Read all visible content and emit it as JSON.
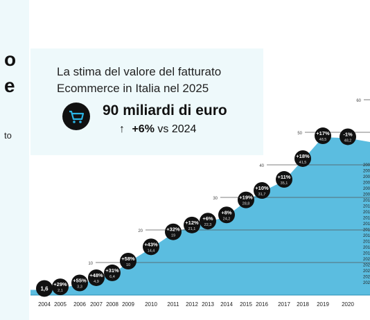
{
  "left_panel": {
    "line1": "o",
    "line2": "e",
    "note": "to"
  },
  "info_box": {
    "subtitle": "La stima del valore del fatturato Ecommerce in Italia nel 2025",
    "headline": "90 miliardi di euro",
    "growth_pct": "+6%",
    "growth_ref": "vs 2024",
    "icon": "shopping-cart-icon"
  },
  "colors": {
    "area": "#5bbde0",
    "bubble": "#111111",
    "panel": "#eef9fb",
    "grid": "#555555"
  },
  "chart_data": {
    "type": "area",
    "ylim": [
      0,
      60
    ],
    "yticks": [
      10,
      20,
      30,
      40,
      50,
      60
    ],
    "x_tick_labels": [
      "2004",
      "2005",
      "2006",
      "2007",
      "2008",
      "2009",
      "2010",
      "2011",
      "2012",
      "2013",
      "2014",
      "2015",
      "2016",
      "2017",
      "2018",
      "2019",
      "2020"
    ],
    "points": [
      {
        "year": "2004",
        "value": 1.6,
        "growth": "",
        "value_label": "1,6"
      },
      {
        "year": "2005",
        "value": 2.1,
        "growth": "+29%",
        "value_label": "2,1"
      },
      {
        "year": "2006",
        "value": 3.3,
        "growth": "+55%",
        "value_label": "3,3"
      },
      {
        "year": "2007",
        "value": 4.9,
        "growth": "+48%",
        "value_label": "4,9"
      },
      {
        "year": "2008",
        "value": 6.4,
        "growth": "+31%",
        "value_label": "6,4"
      },
      {
        "year": "2009",
        "value": 10,
        "growth": "+58%",
        "value_label": "10"
      },
      {
        "year": "2010",
        "value": 14.4,
        "growth": "+43%",
        "value_label": "14,4"
      },
      {
        "year": "2011",
        "value": 19,
        "growth": "+32%",
        "value_label": "19"
      },
      {
        "year": "2012",
        "value": 21.1,
        "growth": "+12%",
        "value_label": "21,1"
      },
      {
        "year": "2013",
        "value": 22.3,
        "growth": "+6%",
        "value_label": "22,3"
      },
      {
        "year": "2014",
        "value": 24.2,
        "growth": "+8%",
        "value_label": "24,2"
      },
      {
        "year": "2015",
        "value": 28.8,
        "growth": "+19%",
        "value_label": "28,8"
      },
      {
        "year": "2016",
        "value": 31.7,
        "growth": "+10%",
        "value_label": "31,7"
      },
      {
        "year": "2017",
        "value": 35.1,
        "growth": "+11%",
        "value_label": "35,1"
      },
      {
        "year": "2018",
        "value": 41.5,
        "growth": "+18%",
        "value_label": "41,5"
      },
      {
        "year": "2019",
        "value": 48.5,
        "growth": "+17%",
        "value_label": "48,5"
      },
      {
        "year": "2020",
        "value": 48.2,
        "growth": "-1%",
        "value_label": "48,2"
      }
    ],
    "legend_labels": [
      "200",
      "200",
      "200",
      "200",
      "200",
      "200",
      "201",
      "201",
      "201",
      "201",
      "201",
      "201",
      "201",
      "201",
      "201",
      "201",
      "202",
      "202",
      "202",
      "202",
      "202"
    ]
  }
}
